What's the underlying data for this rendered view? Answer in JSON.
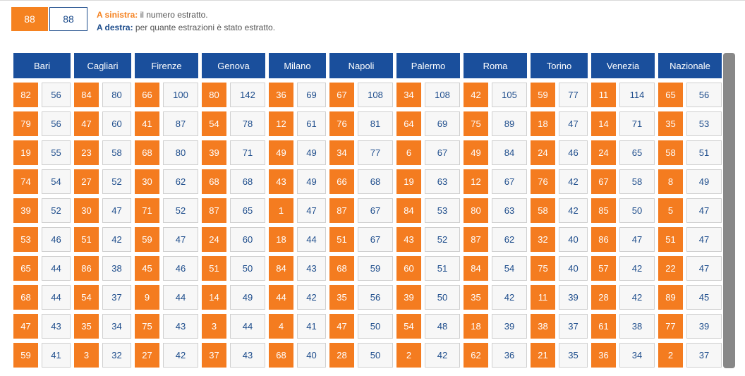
{
  "legend": {
    "number_sample": "88",
    "count_sample": "88",
    "left_key": "A sinistra:",
    "left_text": " il numero estratto.",
    "right_key": "A destra:",
    "right_text": " per quante estrazioni è stato estratto."
  },
  "cities": [
    {
      "name": "Bari",
      "rows": [
        [
          82,
          56
        ],
        [
          79,
          56
        ],
        [
          19,
          55
        ],
        [
          74,
          54
        ],
        [
          39,
          52
        ],
        [
          53,
          46
        ],
        [
          65,
          44
        ],
        [
          68,
          44
        ],
        [
          47,
          43
        ],
        [
          59,
          41
        ]
      ]
    },
    {
      "name": "Cagliari",
      "rows": [
        [
          84,
          80
        ],
        [
          47,
          60
        ],
        [
          23,
          58
        ],
        [
          27,
          52
        ],
        [
          30,
          47
        ],
        [
          51,
          42
        ],
        [
          86,
          38
        ],
        [
          54,
          37
        ],
        [
          35,
          34
        ],
        [
          3,
          32
        ]
      ]
    },
    {
      "name": "Firenze",
      "rows": [
        [
          66,
          100
        ],
        [
          41,
          87
        ],
        [
          68,
          80
        ],
        [
          30,
          62
        ],
        [
          71,
          52
        ],
        [
          59,
          47
        ],
        [
          45,
          46
        ],
        [
          9,
          44
        ],
        [
          75,
          43
        ],
        [
          27,
          42
        ]
      ]
    },
    {
      "name": "Genova",
      "rows": [
        [
          80,
          142
        ],
        [
          54,
          78
        ],
        [
          39,
          71
        ],
        [
          68,
          68
        ],
        [
          87,
          65
        ],
        [
          24,
          60
        ],
        [
          51,
          50
        ],
        [
          14,
          49
        ],
        [
          3,
          44
        ],
        [
          37,
          43
        ]
      ]
    },
    {
      "name": "Milano",
      "rows": [
        [
          36,
          69
        ],
        [
          12,
          61
        ],
        [
          49,
          49
        ],
        [
          43,
          49
        ],
        [
          1,
          47
        ],
        [
          18,
          44
        ],
        [
          84,
          43
        ],
        [
          44,
          42
        ],
        [
          4,
          41
        ],
        [
          68,
          40
        ]
      ]
    },
    {
      "name": "Napoli",
      "rows": [
        [
          67,
          108
        ],
        [
          76,
          81
        ],
        [
          34,
          77
        ],
        [
          66,
          68
        ],
        [
          87,
          67
        ],
        [
          51,
          67
        ],
        [
          68,
          59
        ],
        [
          35,
          56
        ],
        [
          47,
          50
        ],
        [
          28,
          50
        ]
      ]
    },
    {
      "name": "Palermo",
      "rows": [
        [
          34,
          108
        ],
        [
          64,
          69
        ],
        [
          6,
          67
        ],
        [
          19,
          63
        ],
        [
          84,
          53
        ],
        [
          43,
          52
        ],
        [
          60,
          51
        ],
        [
          39,
          50
        ],
        [
          54,
          48
        ],
        [
          2,
          42
        ]
      ]
    },
    {
      "name": "Roma",
      "rows": [
        [
          42,
          105
        ],
        [
          75,
          89
        ],
        [
          49,
          84
        ],
        [
          12,
          67
        ],
        [
          80,
          63
        ],
        [
          87,
          62
        ],
        [
          84,
          54
        ],
        [
          35,
          42
        ],
        [
          18,
          39
        ],
        [
          62,
          36
        ]
      ]
    },
    {
      "name": "Torino",
      "rows": [
        [
          59,
          77
        ],
        [
          18,
          47
        ],
        [
          24,
          46
        ],
        [
          76,
          42
        ],
        [
          58,
          42
        ],
        [
          32,
          40
        ],
        [
          75,
          40
        ],
        [
          11,
          39
        ],
        [
          38,
          37
        ],
        [
          21,
          35
        ]
      ]
    },
    {
      "name": "Venezia",
      "rows": [
        [
          11,
          114
        ],
        [
          14,
          71
        ],
        [
          24,
          65
        ],
        [
          67,
          58
        ],
        [
          85,
          50
        ],
        [
          86,
          47
        ],
        [
          57,
          42
        ],
        [
          28,
          42
        ],
        [
          61,
          38
        ],
        [
          36,
          34
        ]
      ]
    },
    {
      "name": "Nazionale",
      "rows": [
        [
          65,
          56
        ],
        [
          35,
          53
        ],
        [
          58,
          51
        ],
        [
          8,
          49
        ],
        [
          5,
          47
        ],
        [
          51,
          47
        ],
        [
          22,
          47
        ],
        [
          89,
          45
        ],
        [
          77,
          39
        ],
        [
          2,
          37
        ]
      ]
    }
  ]
}
